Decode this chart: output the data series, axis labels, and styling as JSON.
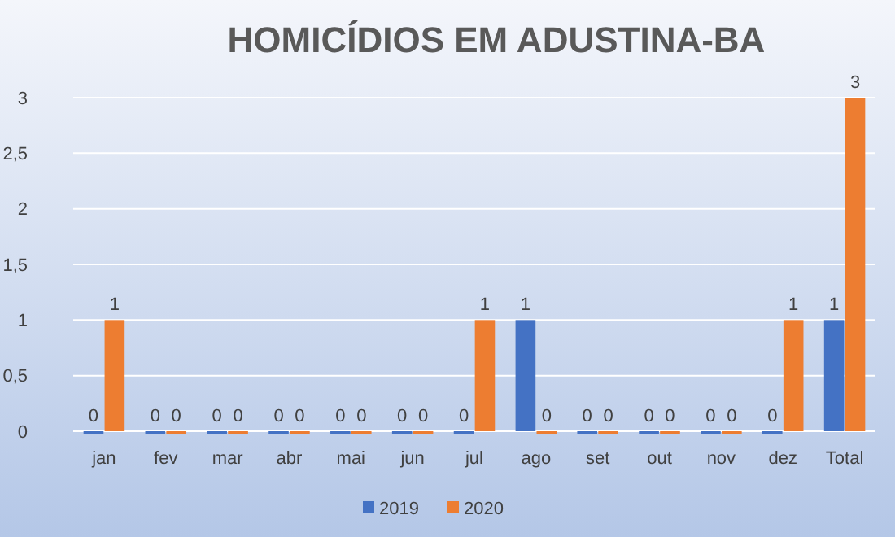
{
  "chart_data": {
    "type": "bar",
    "title": "HOMICÍDIOS EM ADUSTINA-BA",
    "categories": [
      "jan",
      "fev",
      "mar",
      "abr",
      "mai",
      "jun",
      "jul",
      "ago",
      "set",
      "out",
      "nov",
      "dez",
      "Total"
    ],
    "series": [
      {
        "name": "2019",
        "color": "#4472c4",
        "values": [
          0,
          0,
          0,
          0,
          0,
          0,
          0,
          1,
          0,
          0,
          0,
          0,
          1
        ]
      },
      {
        "name": "2020",
        "color": "#ed7d31",
        "values": [
          1,
          0,
          0,
          0,
          0,
          0,
          1,
          0,
          0,
          0,
          0,
          1,
          3
        ]
      }
    ],
    "ylim": [
      0,
      3
    ],
    "yticks": [
      0,
      {
        "value": 0.5,
        "label": "0,5"
      },
      1,
      {
        "value": 1.5,
        "label": "1,5"
      },
      2,
      {
        "value": 2.5,
        "label": "2,5"
      },
      3
    ],
    "grid": true,
    "legend": "bottom",
    "data_labels": true
  }
}
